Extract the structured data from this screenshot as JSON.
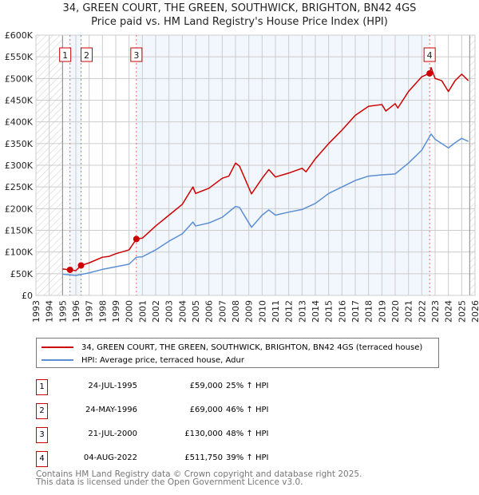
{
  "title": "34, GREEN COURT, THE GREEN, SOUTHWICK, BRIGHTON, BN42 4GS",
  "subtitle": "Price paid vs. HM Land Registry's House Price Index (HPI)",
  "chart_data": {
    "type": "line",
    "xlim": [
      1993,
      2026
    ],
    "ylim": [
      0,
      600000
    ],
    "x_ticks": [
      "1993",
      "1994",
      "1995",
      "1996",
      "1997",
      "1998",
      "1999",
      "2000",
      "2001",
      "2002",
      "2003",
      "2004",
      "2005",
      "2006",
      "2007",
      "2008",
      "2009",
      "2010",
      "2011",
      "2012",
      "2013",
      "2014",
      "2015",
      "2016",
      "2017",
      "2018",
      "2019",
      "2020",
      "2021",
      "2022",
      "2023",
      "2024",
      "2025",
      "2026"
    ],
    "y_ticks": [
      {
        "v": 0,
        "label": "£0"
      },
      {
        "v": 50000,
        "label": "£50K"
      },
      {
        "v": 100000,
        "label": "£100K"
      },
      {
        "v": 150000,
        "label": "£150K"
      },
      {
        "v": 200000,
        "label": "£200K"
      },
      {
        "v": 250000,
        "label": "£250K"
      },
      {
        "v": 300000,
        "label": "£300K"
      },
      {
        "v": 350000,
        "label": "£350K"
      },
      {
        "v": 400000,
        "label": "£400K"
      },
      {
        "v": 450000,
        "label": "£450K"
      },
      {
        "v": 500000,
        "label": "£500K"
      },
      {
        "v": 550000,
        "label": "£550K"
      },
      {
        "v": 600000,
        "label": "£600K"
      }
    ],
    "grid": true,
    "hatched_ranges": [
      [
        1993,
        1995
      ],
      [
        2025.6,
        2026
      ]
    ],
    "series": [
      {
        "name": "34, GREEN COURT, THE GREEN, SOUTHWICK, BRIGHTON, BN42 4GS (terraced house)",
        "color": "#cc0000",
        "points": [
          [
            1995.0,
            61000
          ],
          [
            1995.56,
            59000
          ],
          [
            1996.0,
            57000
          ],
          [
            1996.39,
            69000
          ],
          [
            1997,
            75000
          ],
          [
            1998,
            88000
          ],
          [
            1998.5,
            90000
          ],
          [
            1999,
            96000
          ],
          [
            2000,
            105000
          ],
          [
            2000.55,
            130000
          ],
          [
            2001,
            132000
          ],
          [
            2002,
            160000
          ],
          [
            2003,
            185000
          ],
          [
            2004,
            210000
          ],
          [
            2004.8,
            250000
          ],
          [
            2005,
            235000
          ],
          [
            2006,
            247000
          ],
          [
            2007,
            270000
          ],
          [
            2007.5,
            275000
          ],
          [
            2008,
            305000
          ],
          [
            2008.3,
            298000
          ],
          [
            2009.2,
            234000
          ],
          [
            2010,
            270000
          ],
          [
            2010.5,
            290000
          ],
          [
            2011,
            273000
          ],
          [
            2012,
            282000
          ],
          [
            2013,
            293000
          ],
          [
            2013.3,
            285000
          ],
          [
            2014,
            315000
          ],
          [
            2015,
            350000
          ],
          [
            2016,
            381000
          ],
          [
            2017,
            415000
          ],
          [
            2018,
            436000
          ],
          [
            2019,
            440000
          ],
          [
            2019.3,
            425000
          ],
          [
            2020,
            442000
          ],
          [
            2020.2,
            432000
          ],
          [
            2021,
            470000
          ],
          [
            2022,
            504000
          ],
          [
            2022.59,
            512000
          ],
          [
            2022.7,
            525000
          ],
          [
            2023,
            500000
          ],
          [
            2023.5,
            495000
          ],
          [
            2024,
            470000
          ],
          [
            2024.5,
            495000
          ],
          [
            2025,
            510000
          ],
          [
            2025.5,
            495000
          ]
        ]
      },
      {
        "name": "HPI: Average price, terraced house, Adur",
        "color": "#5b8fd4",
        "points": [
          [
            1995.0,
            49000
          ],
          [
            1996,
            46000
          ],
          [
            1997,
            52000
          ],
          [
            1998,
            60000
          ],
          [
            1999,
            66000
          ],
          [
            2000,
            72000
          ],
          [
            2000.55,
            88000
          ],
          [
            2001,
            89000
          ],
          [
            2002,
            105000
          ],
          [
            2003,
            125000
          ],
          [
            2004,
            142000
          ],
          [
            2004.8,
            169000
          ],
          [
            2005,
            160000
          ],
          [
            2006,
            167000
          ],
          [
            2007,
            180000
          ],
          [
            2008,
            205000
          ],
          [
            2008.3,
            203000
          ],
          [
            2009.2,
            157000
          ],
          [
            2010,
            185000
          ],
          [
            2010.5,
            197000
          ],
          [
            2011,
            185000
          ],
          [
            2012,
            192000
          ],
          [
            2013,
            198000
          ],
          [
            2014,
            212000
          ],
          [
            2015,
            235000
          ],
          [
            2016,
            250000
          ],
          [
            2017,
            265000
          ],
          [
            2018,
            275000
          ],
          [
            2019,
            278000
          ],
          [
            2020,
            280000
          ],
          [
            2021,
            305000
          ],
          [
            2022,
            335000
          ],
          [
            2022.7,
            372000
          ],
          [
            2023,
            360000
          ],
          [
            2024,
            340000
          ],
          [
            2024.5,
            352000
          ],
          [
            2025,
            362000
          ],
          [
            2025.5,
            355000
          ]
        ]
      }
    ],
    "sales": [
      {
        "n": "1",
        "x": 1995.56,
        "y": 59000
      },
      {
        "n": "2",
        "x": 1996.39,
        "y": 69000
      },
      {
        "n": "3",
        "x": 2000.55,
        "y": 130000
      },
      {
        "n": "4",
        "x": 2022.59,
        "y": 511750
      }
    ]
  },
  "legend": {
    "property": "34, GREEN COURT, THE GREEN, SOUTHWICK, BRIGHTON, BN42 4GS (terraced house)",
    "hpi": "HPI: Average price, terraced house, Adur"
  },
  "transactions": [
    {
      "n": "1",
      "date": "24-JUL-1995",
      "price": "£59,000",
      "hpi": "25% ↑ HPI"
    },
    {
      "n": "2",
      "date": "24-MAY-1996",
      "price": "£69,000",
      "hpi": "46% ↑ HPI"
    },
    {
      "n": "3",
      "date": "21-JUL-2000",
      "price": "£130,000",
      "hpi": "48% ↑ HPI"
    },
    {
      "n": "4",
      "date": "04-AUG-2022",
      "price": "£511,750",
      "hpi": "39% ↑ HPI"
    }
  ],
  "footer": {
    "line1": "Contains HM Land Registry data © Crown copyright and database right 2025.",
    "line2": "This data is licensed under the Open Government Licence v3.0."
  }
}
